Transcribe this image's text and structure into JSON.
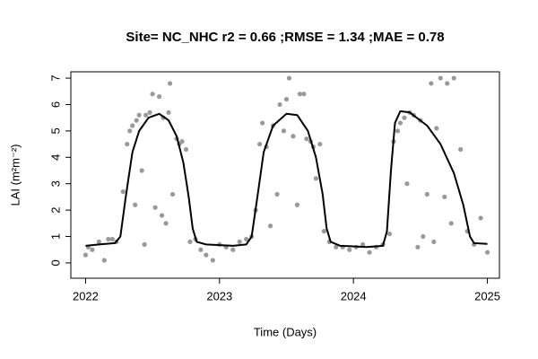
{
  "chart_data": {
    "type": "scatter",
    "title": "Site= NC_NHC r2 = 0.66 ;RMSE = 1.34 ;MAE = 0.78",
    "x_label": "Time (Days)",
    "y_label": "LAI (m²m⁻²)",
    "xlim": [
      2021.89,
      2025.09
    ],
    "xticks": [
      2022,
      2023,
      2024,
      2025
    ],
    "ylim": [
      -0.58,
      7.24
    ],
    "yticks": [
      0,
      1,
      2,
      3,
      4,
      5,
      6,
      7
    ],
    "series": [
      {
        "kind": "points",
        "color": "#999999",
        "x": [
          2022.0,
          2022.02,
          2022.05,
          2022.1,
          2022.14,
          2022.17,
          2022.2,
          2022.23,
          2022.28,
          2022.31,
          2022.33,
          2022.35,
          2022.37,
          2022.38,
          2022.4,
          2022.42,
          2022.44,
          2022.45,
          2022.48,
          2022.5,
          2022.52,
          2022.55,
          2022.57,
          2022.58,
          2022.6,
          2022.62,
          2022.63,
          2022.65,
          2022.68,
          2022.7,
          2022.72,
          2022.75,
          2022.78,
          2022.82,
          2022.86,
          2022.9,
          2022.95,
          2023.0,
          2023.05,
          2023.1,
          2023.15,
          2023.2,
          2023.24,
          2023.27,
          2023.3,
          2023.32,
          2023.35,
          2023.38,
          2023.4,
          2023.43,
          2023.45,
          2023.48,
          2023.5,
          2023.52,
          2023.55,
          2023.58,
          2023.6,
          2023.63,
          2023.65,
          2023.68,
          2023.7,
          2023.72,
          2023.75,
          2023.78,
          2023.82,
          2023.87,
          2023.92,
          2023.97,
          2024.02,
          2024.07,
          2024.12,
          2024.17,
          2024.22,
          2024.27,
          2024.3,
          2024.33,
          2024.35,
          2024.38,
          2024.4,
          2024.42,
          2024.45,
          2024.48,
          2024.5,
          2024.52,
          2024.55,
          2024.58,
          2024.6,
          2024.62,
          2024.65,
          2024.68,
          2024.7,
          2024.73,
          2024.75,
          2024.8,
          2024.85,
          2024.9,
          2024.95,
          2025.0
        ],
        "y": [
          0.3,
          0.6,
          0.5,
          0.8,
          0.1,
          0.9,
          0.9,
          0.8,
          2.7,
          4.5,
          5.0,
          5.2,
          2.2,
          5.4,
          5.6,
          3.5,
          0.7,
          5.6,
          5.7,
          6.4,
          2.1,
          6.3,
          1.8,
          5.5,
          1.5,
          5.7,
          6.8,
          2.6,
          4.7,
          4.5,
          4.6,
          4.3,
          0.8,
          0.9,
          0.5,
          0.3,
          0.1,
          0.7,
          0.6,
          0.5,
          0.8,
          0.9,
          1.0,
          2.0,
          4.5,
          5.3,
          4.4,
          1.4,
          5.2,
          2.6,
          6.0,
          5.0,
          6.2,
          7.0,
          4.8,
          2.2,
          6.4,
          6.4,
          4.7,
          4.6,
          4.4,
          3.2,
          4.5,
          1.2,
          0.8,
          0.6,
          0.6,
          0.5,
          0.6,
          0.7,
          0.4,
          0.6,
          0.7,
          1.1,
          4.6,
          5.0,
          5.3,
          5.5,
          3.0,
          5.7,
          5.6,
          0.6,
          5.4,
          1.0,
          2.6,
          6.8,
          0.8,
          5.1,
          7.0,
          2.5,
          6.8,
          1.5,
          7.0,
          4.3,
          1.2,
          0.7,
          1.7,
          0.4
        ]
      },
      {
        "kind": "line",
        "color": "#000000",
        "x": [
          2022.0,
          2022.1,
          2022.22,
          2022.26,
          2022.3,
          2022.35,
          2022.4,
          2022.47,
          2022.55,
          2022.62,
          2022.68,
          2022.73,
          2022.77,
          2022.8,
          2022.83,
          2022.9,
          2023.1,
          2023.2,
          2023.24,
          2023.28,
          2023.33,
          2023.4,
          2023.5,
          2023.58,
          2023.66,
          2023.72,
          2023.77,
          2023.8,
          2023.83,
          2023.9,
          2024.1,
          2024.22,
          2024.25,
          2024.28,
          2024.31,
          2024.35,
          2024.42,
          2024.55,
          2024.65,
          2024.75,
          2024.82,
          2024.87,
          2024.9,
          2025.0
        ],
        "y": [
          0.65,
          0.7,
          0.75,
          1.0,
          2.5,
          4.2,
          5.0,
          5.5,
          5.65,
          5.4,
          4.8,
          3.8,
          2.5,
          1.3,
          0.8,
          0.7,
          0.65,
          0.7,
          1.0,
          2.4,
          4.2,
          5.2,
          5.65,
          5.6,
          5.0,
          4.0,
          2.6,
          1.3,
          0.8,
          0.65,
          0.6,
          0.65,
          1.2,
          3.5,
          5.3,
          5.75,
          5.7,
          5.2,
          4.5,
          3.4,
          2.2,
          1.0,
          0.75,
          0.72
        ]
      }
    ]
  }
}
